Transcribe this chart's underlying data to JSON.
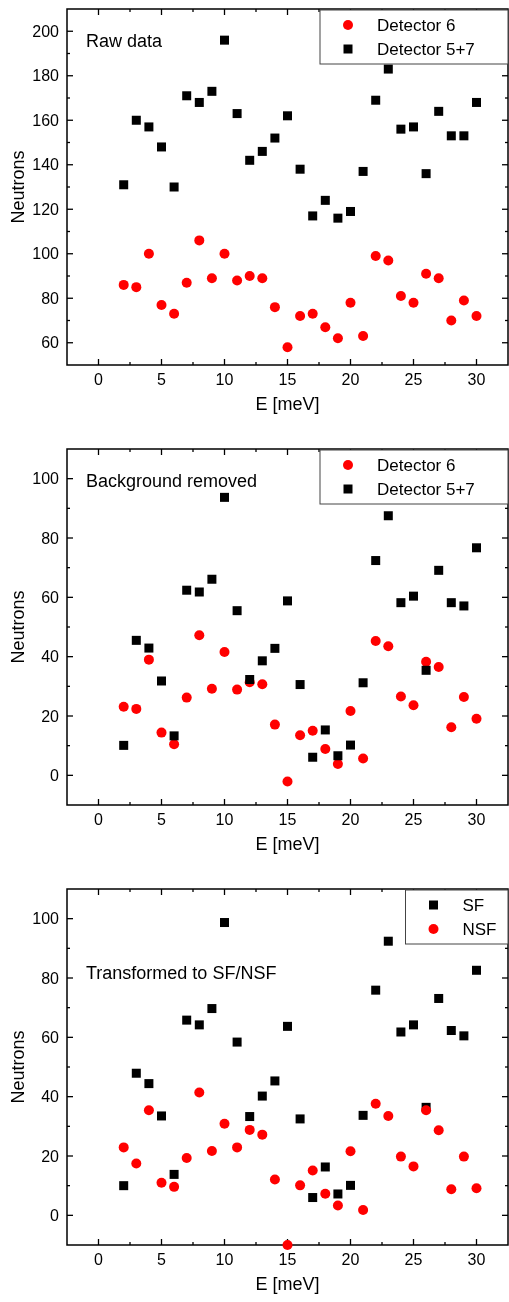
{
  "chart_data": [
    {
      "type": "scatter",
      "annotations": [
        "Raw data"
      ],
      "xlabel": "E [meV]",
      "ylabel": "Neutrons",
      "legend": "top right",
      "xlim": [
        -2.5,
        32.5
      ],
      "ylim": [
        50,
        210
      ],
      "xticks": [
        0,
        {
          "value": 2.5,
          "label": null
        },
        5,
        {
          "value": 7.5,
          "label": null
        },
        10,
        {
          "value": 12.5,
          "label": null
        },
        15,
        {
          "value": 17.5,
          "label": null
        },
        20,
        {
          "value": 22.5,
          "label": null
        },
        25,
        {
          "value": 27.5,
          "label": null
        },
        30
      ],
      "yticks": [
        60,
        {
          "value": 70,
          "label": null
        },
        80,
        {
          "value": 90,
          "label": null
        },
        100,
        {
          "value": 110,
          "label": null
        },
        120,
        {
          "value": 130,
          "label": null
        },
        140,
        {
          "value": 150,
          "label": null
        },
        160,
        {
          "value": 170,
          "label": null
        },
        180,
        {
          "value": 190,
          "label": null
        },
        200
      ],
      "x": [
        2,
        3,
        4,
        5,
        6,
        7,
        8,
        9,
        10,
        11,
        12,
        13,
        14,
        15,
        16,
        17,
        18,
        19,
        20,
        21,
        22,
        23,
        24,
        25,
        26,
        27,
        28,
        29,
        30
      ],
      "series": [
        {
          "name": "Detector 6",
          "color": "#ff0000",
          "marker": "circle",
          "values": [
            86,
            85,
            100,
            77,
            73,
            87,
            106,
            89,
            100,
            88,
            90,
            89,
            76,
            58,
            72,
            73,
            67,
            62,
            78,
            63,
            99,
            97,
            81,
            78,
            91,
            89,
            70,
            79,
            72
          ]
        },
        {
          "name": "Detector 5+7",
          "color": "#000000",
          "marker": "square",
          "values": [
            131,
            160,
            157,
            148,
            130,
            171,
            168,
            173,
            196,
            163,
            142,
            146,
            152,
            162,
            138,
            117,
            124,
            116,
            119,
            137,
            169,
            183,
            156,
            157,
            136,
            164,
            153,
            153,
            168
          ]
        }
      ]
    },
    {
      "type": "scatter",
      "annotations": [
        "Background removed"
      ],
      "xlabel": "E [meV]",
      "ylabel": "Neutrons",
      "legend": "top right",
      "xlim": [
        -2.5,
        32.5
      ],
      "ylim": [
        -10,
        110
      ],
      "xticks": [
        0,
        {
          "value": 2.5,
          "label": null
        },
        5,
        {
          "value": 7.5,
          "label": null
        },
        10,
        {
          "value": 12.5,
          "label": null
        },
        15,
        {
          "value": 17.5,
          "label": null
        },
        20,
        {
          "value": 22.5,
          "label": null
        },
        25,
        {
          "value": 27.5,
          "label": null
        },
        30
      ],
      "yticks": [
        0,
        {
          "value": 10,
          "label": null
        },
        20,
        {
          "value": 30,
          "label": null
        },
        40,
        {
          "value": 50,
          "label": null
        },
        60,
        {
          "value": 70,
          "label": null
        },
        80,
        {
          "value": 90,
          "label": null
        },
        100
      ],
      "x": [
        2,
        3,
        4,
        5,
        6,
        7,
        8,
        9,
        10,
        11,
        12,
        13,
        14,
        15,
        16,
        17,
        18,
        19,
        20,
        21,
        22,
        23,
        24,
        25,
        26,
        27,
        28,
        29,
        30
      ],
      "series": [
        {
          "name": "Detector 6",
          "color": "#ff0000",
          "marker": "circle",
          "values": [
            23.1,
            22.4,
            39,
            14.4,
            10.5,
            26.2,
            47.2,
            29.2,
            41.6,
            28.9,
            31.4,
            30.7,
            17.1,
            -2.1,
            13.5,
            15,
            8.9,
            3.8,
            21.7,
            5.7,
            45.3,
            43.5,
            26.6,
            23.6,
            38.3,
            36.5,
            16.2,
            26.4,
            19.1
          ]
        },
        {
          "name": "Detector 5+7",
          "color": "#000000",
          "marker": "square",
          "values": [
            10.1,
            45.5,
            42.9,
            31.8,
            13.3,
            62.4,
            61.8,
            66.1,
            93.7,
            55.5,
            32.3,
            38.6,
            42.8,
            58.8,
            30.6,
            6.1,
            15.3,
            6.6,
            10.2,
            31.2,
            72.4,
            87.5,
            58.2,
            60.4,
            35.4,
            69.1,
            58.2,
            57.1,
            76.7
          ]
        }
      ]
    },
    {
      "type": "scatter",
      "annotations": [
        "Transformed to SF/NSF"
      ],
      "xlabel": "E [meV]",
      "ylabel": "Neutrons",
      "legend": "top right",
      "xlim": [
        -2.5,
        32.5
      ],
      "ylim": [
        -10,
        110
      ],
      "xticks": [
        0,
        {
          "value": 2.5,
          "label": null
        },
        5,
        {
          "value": 7.5,
          "label": null
        },
        10,
        {
          "value": 12.5,
          "label": null
        },
        15,
        {
          "value": 17.5,
          "label": null
        },
        20,
        {
          "value": 22.5,
          "label": null
        },
        25,
        {
          "value": 27.5,
          "label": null
        },
        30
      ],
      "yticks": [
        0,
        {
          "value": 10,
          "label": null
        },
        20,
        {
          "value": 30,
          "label": null
        },
        40,
        {
          "value": 50,
          "label": null
        },
        60,
        {
          "value": 70,
          "label": null
        },
        80,
        {
          "value": 90,
          "label": null
        },
        100
      ],
      "x": [
        2,
        3,
        4,
        5,
        6,
        7,
        8,
        9,
        10,
        11,
        12,
        13,
        14,
        15,
        16,
        17,
        18,
        19,
        20,
        21,
        22,
        23,
        24,
        25,
        26,
        27,
        28,
        29,
        30
      ],
      "series": [
        {
          "name": "SF",
          "color": "#000000",
          "marker": "square",
          "values": [
            10,
            47.9,
            44.4,
            33.5,
            13.8,
            65.8,
            64.2,
            69.7,
            98.7,
            58.4,
            33.3,
            40.2,
            45.3,
            63.7,
            32.5,
            6,
            16.3,
            7.2,
            10.1,
            33.7,
            75.9,
            92.4,
            61.8,
            64.2,
            36.4,
            73.1,
            62.3,
            60.5,
            82.6
          ]
        },
        {
          "name": "NSF",
          "color": "#ff0000",
          "marker": "circle",
          "values": [
            22.9,
            17.5,
            35.4,
            11,
            9.6,
            19.3,
            41.4,
            21.7,
            30.9,
            22.9,
            28.8,
            27.2,
            12.1,
            -10,
            10.1,
            15.1,
            7.3,
            3.3,
            21.6,
            1.8,
            37.6,
            33.5,
            19.8,
            16.5,
            35.4,
            28.7,
            8.8,
            19.8,
            9.1
          ]
        }
      ]
    }
  ]
}
